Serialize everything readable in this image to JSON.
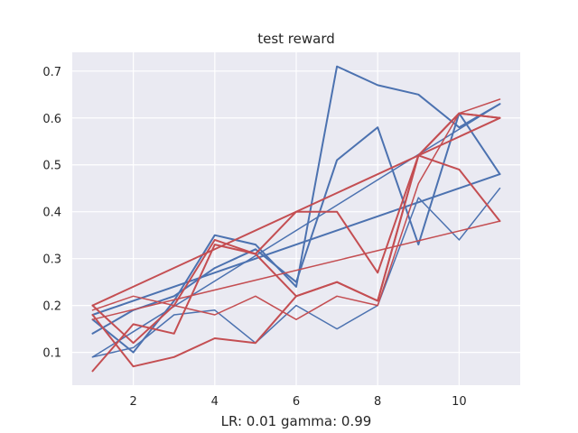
{
  "chart_data": {
    "type": "line",
    "title": "test reward",
    "xlabel": "LR: 0.01 gamma: 0.99",
    "ylabel": "",
    "xlim": [
      0.5,
      11.5
    ],
    "ylim": [
      0.03,
      0.74
    ],
    "xticks": [
      2,
      4,
      6,
      8,
      10
    ],
    "yticks": [
      0.1,
      0.2,
      0.3,
      0.4,
      0.5,
      0.6,
      0.7
    ],
    "grid": true,
    "background": "#eaeaf2",
    "grid_color": "#ffffff",
    "colors": {
      "blue": "#4c72b0",
      "red": "#c44e52"
    },
    "series": [
      {
        "color": "blue",
        "linewidth": 2.0,
        "x": [
          1,
          2,
          3,
          4,
          5,
          6,
          7,
          8,
          9,
          10,
          11
        ],
        "y": [
          0.17,
          0.1,
          0.21,
          0.35,
          0.33,
          0.24,
          0.71,
          0.67,
          0.65,
          0.58,
          0.63
        ]
      },
      {
        "color": "blue",
        "linewidth": 2.0,
        "x": [
          1,
          2,
          3,
          4,
          5,
          6,
          7,
          8,
          9,
          10,
          11
        ],
        "y": [
          0.14,
          0.19,
          0.22,
          0.28,
          0.32,
          0.25,
          0.51,
          0.58,
          0.33,
          0.61,
          0.48
        ]
      },
      {
        "color": "blue",
        "linewidth": 2.0,
        "x": [
          1,
          11
        ],
        "y": [
          0.18,
          0.48
        ]
      },
      {
        "color": "blue",
        "linewidth": 1.5,
        "x": [
          1,
          11
        ],
        "y": [
          0.09,
          0.63
        ]
      },
      {
        "color": "blue",
        "linewidth": 1.5,
        "x": [
          1,
          2,
          3,
          4,
          5,
          6,
          7,
          8,
          9,
          10,
          11
        ],
        "y": [
          0.09,
          0.11,
          0.18,
          0.19,
          0.12,
          0.2,
          0.15,
          0.2,
          0.43,
          0.34,
          0.45
        ]
      },
      {
        "color": "red",
        "linewidth": 2.0,
        "x": [
          1,
          2,
          3,
          4,
          5,
          6,
          7,
          8,
          9,
          10,
          11
        ],
        "y": [
          0.2,
          0.12,
          0.2,
          0.34,
          0.31,
          0.4,
          0.4,
          0.27,
          0.52,
          0.49,
          0.38
        ]
      },
      {
        "color": "red",
        "linewidth": 2.0,
        "x": [
          1,
          2,
          3,
          4,
          5,
          6,
          7,
          8,
          9,
          10,
          11
        ],
        "y": [
          0.06,
          0.16,
          0.14,
          0.33,
          0.31,
          0.22,
          0.25,
          0.21,
          0.52,
          0.61,
          0.6
        ]
      },
      {
        "color": "red",
        "linewidth": 2.0,
        "x": [
          1,
          2,
          3,
          4,
          5,
          6,
          7,
          8,
          9,
          10,
          11
        ],
        "y": [
          0.18,
          0.07,
          0.09,
          0.13,
          0.12,
          0.22,
          0.25,
          0.21,
          0.52,
          0.61,
          0.6
        ]
      },
      {
        "color": "red",
        "linewidth": 2.0,
        "x": [
          1,
          11
        ],
        "y": [
          0.2,
          0.6
        ]
      },
      {
        "color": "red",
        "linewidth": 1.5,
        "x": [
          1,
          2,
          3,
          4,
          5,
          6,
          7,
          8,
          9,
          10,
          11
        ],
        "y": [
          0.19,
          0.22,
          0.2,
          0.18,
          0.22,
          0.17,
          0.22,
          0.2,
          0.46,
          0.61,
          0.64
        ]
      },
      {
        "color": "red",
        "linewidth": 1.5,
        "x": [
          1,
          11
        ],
        "y": [
          0.17,
          0.38
        ]
      }
    ]
  }
}
